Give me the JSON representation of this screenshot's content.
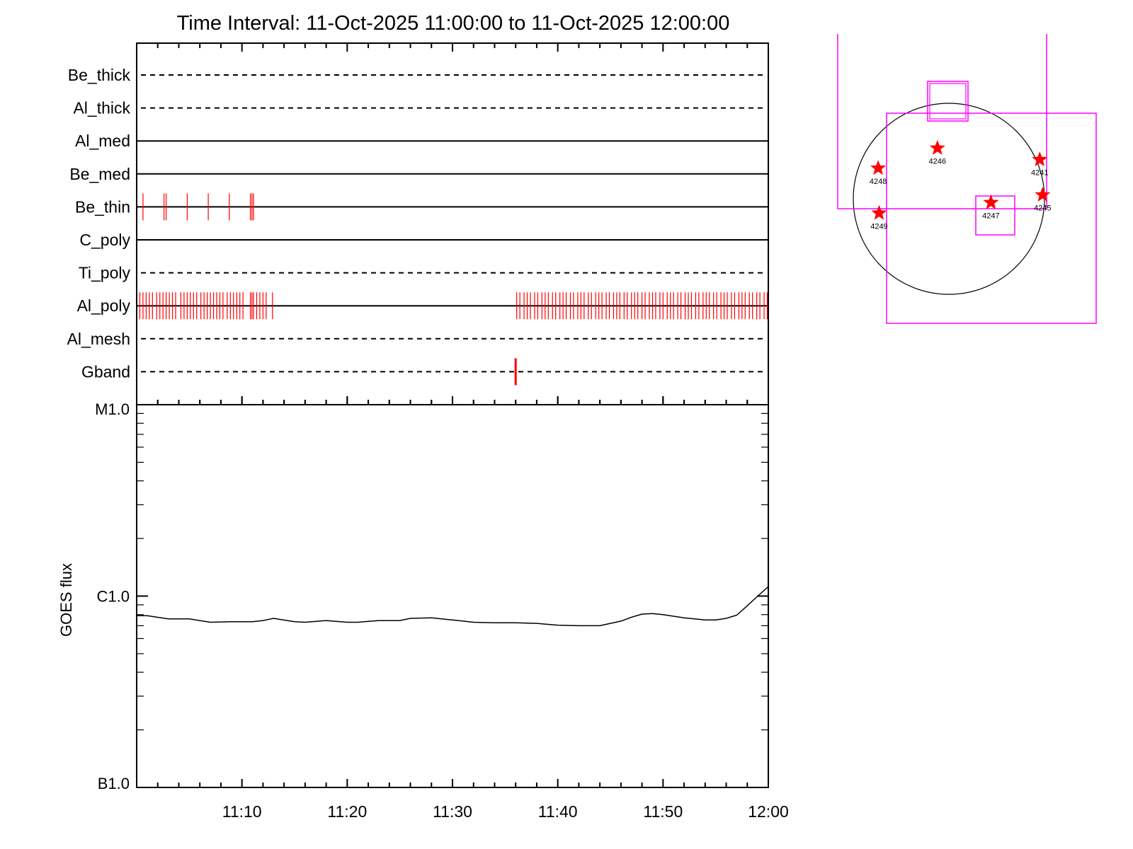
{
  "title": "Time Interval: 11-Oct-2025 11:00:00 to 11-Oct-2025 12:00:00",
  "colors": {
    "exposure": "#ff0000",
    "fov_box": "#ff00ff",
    "axis": "#000000",
    "flux": "#000000",
    "star": "#ff0000"
  },
  "chart_data": [
    {
      "type": "timeline",
      "name": "filter-exposures",
      "x_range": [
        "11:00",
        "12:00"
      ],
      "x_unit": "minutes after 11:00",
      "rows": [
        {
          "label": "Be_thick",
          "line": "dashed",
          "exposures": []
        },
        {
          "label": "Al_thick",
          "line": "dashed",
          "exposures": []
        },
        {
          "label": "Al_med",
          "line": "solid",
          "exposures": []
        },
        {
          "label": "Be_med",
          "line": "solid",
          "exposures": []
        },
        {
          "label": "Be_thin",
          "line": "solid",
          "exposures": [
            0.6,
            2.6,
            2.8,
            4.8,
            6.8,
            8.8,
            10.8,
            10.95,
            11.1
          ]
        },
        {
          "label": "C_poly",
          "line": "solid",
          "exposures": []
        },
        {
          "label": "Ti_poly",
          "line": "dashed",
          "exposures": []
        },
        {
          "label": "Al_poly",
          "line": "solid",
          "exposures": [
            0.3,
            0.6,
            0.9,
            1.2,
            1.5,
            1.9,
            2.2,
            2.5,
            2.8,
            3.1,
            3.4,
            3.7,
            4.2,
            4.5,
            4.8,
            5.1,
            5.4,
            5.7,
            6.1,
            6.4,
            6.7,
            7.0,
            7.3,
            7.6,
            7.9,
            8.2,
            8.6,
            8.9,
            9.2,
            9.5,
            9.8,
            10.1,
            10.8,
            10.95,
            11.1,
            11.4,
            11.7,
            12.0,
            12.3,
            12.9,
            36.1,
            36.4,
            36.8,
            37.1,
            37.4,
            37.8,
            38.1,
            38.5,
            38.8,
            39.1,
            39.5,
            39.8,
            40.2,
            40.5,
            40.8,
            41.2,
            41.5,
            41.9,
            42.2,
            42.5,
            42.9,
            43.2,
            43.6,
            43.9,
            44.2,
            44.6,
            44.9,
            45.3,
            45.6,
            45.9,
            46.3,
            46.6,
            47.0,
            47.3,
            47.6,
            48.0,
            48.3,
            48.7,
            49.0,
            49.3,
            49.7,
            50.0,
            50.4,
            50.7,
            51.0,
            51.4,
            51.7,
            52.1,
            52.4,
            52.7,
            53.1,
            53.4,
            53.8,
            54.1,
            54.4,
            54.8,
            55.1,
            55.5,
            55.8,
            56.1,
            56.5,
            56.8,
            57.2,
            57.5,
            57.8,
            58.2,
            58.5,
            58.9,
            59.2,
            59.6,
            59.9
          ]
        },
        {
          "label": "Al_mesh",
          "line": "dashed",
          "exposures": []
        },
        {
          "label": "Gband",
          "line": "dashed",
          "exposures": [
            36.0
          ]
        }
      ]
    },
    {
      "type": "line",
      "name": "goes-flux",
      "ylabel": "GOES flux",
      "yscale": "log",
      "ylim": [
        1e-07,
        1e-05
      ],
      "y_tick_labels": [
        {
          "value": 1e-05,
          "label": "M1.0"
        },
        {
          "value": 1e-06,
          "label": "C1.0"
        },
        {
          "value": 1e-07,
          "label": "B1.0"
        }
      ],
      "x_tick_labels": [
        "11:10",
        "11:20",
        "11:30",
        "11:40",
        "11:50",
        "12:00"
      ],
      "x_tick_values": [
        10,
        20,
        30,
        40,
        50,
        60
      ],
      "xlim": [
        0,
        60
      ],
      "series": [
        {
          "x": [
            0,
            1,
            3,
            5,
            7,
            9,
            11,
            12,
            13,
            15,
            16,
            18,
            20,
            21,
            23,
            24,
            25,
            26,
            28,
            30,
            32,
            34,
            36,
            38,
            40,
            42,
            44,
            46,
            47,
            48,
            49,
            50,
            52,
            54,
            55,
            56,
            57,
            58,
            59,
            60
          ],
          "y": [
            7.9e-07,
            7.9e-07,
            7.6e-07,
            7.6e-07,
            7.3e-07,
            7.35e-07,
            7.35e-07,
            7.45e-07,
            7.65e-07,
            7.35e-07,
            7.3e-07,
            7.45e-07,
            7.3e-07,
            7.3e-07,
            7.45e-07,
            7.45e-07,
            7.45e-07,
            7.65e-07,
            7.7e-07,
            7.5e-07,
            7.3e-07,
            7.25e-07,
            7.25e-07,
            7.2e-07,
            7.05e-07,
            7e-07,
            7e-07,
            7.4e-07,
            7.75e-07,
            8.05e-07,
            8.1e-07,
            8e-07,
            7.7e-07,
            7.5e-07,
            7.5e-07,
            7.65e-07,
            7.95e-07,
            8.9e-07,
            1e-06,
            1.12e-06
          ]
        }
      ]
    },
    {
      "type": "map",
      "name": "solar-disk",
      "active_regions": [
        {
          "label": "4246",
          "x": -0.12,
          "y": 0.53
        },
        {
          "label": "4241",
          "x": 0.95,
          "y": 0.41
        },
        {
          "label": "4248",
          "x": -0.74,
          "y": 0.32
        },
        {
          "label": "4245",
          "x": 0.98,
          "y": 0.04
        },
        {
          "label": "4247",
          "x": 0.44,
          "y": -0.04
        },
        {
          "label": "4249",
          "x": -0.73,
          "y": -0.15
        }
      ]
    }
  ]
}
